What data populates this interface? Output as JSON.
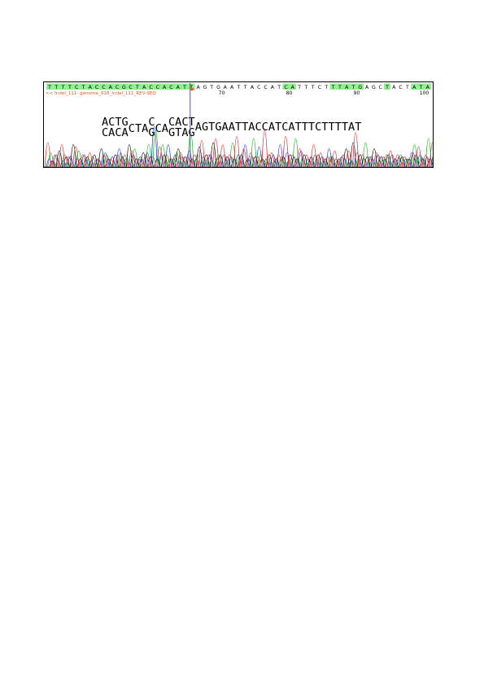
{
  "chart_data": {
    "type": "line",
    "sequence_track": "TTTTCTACCACGCTACCACATTAGTGAATTACCATCATTTCTTTATGAGCTACTATA",
    "highlight_pattern": "GGGGGGGGGGGGGGGGGGGGGGWWWWWWWWWWWWWGGWWWWWGGGGGWWWGWWWGGGGGG",
    "read_label": "<< Indel_111- genome_918_Indel_111_REV-SEQ",
    "position_ticks": [
      {
        "label": "70",
        "index": 25
      },
      {
        "label": "80",
        "index": 35
      },
      {
        "label": "90",
        "index": 45
      },
      {
        "label": "100",
        "index": 55
      }
    ],
    "call_prefix_upper": [
      "ACTG",
      "C",
      "CACT"
    ],
    "call_prefix_lower": [
      "CACA",
      "G",
      "GTAG"
    ],
    "call_prefix_middle": [
      "CTA",
      "CA"
    ],
    "call_suffix": "AGTGAATTACCATCATTTCTTTTAT",
    "cursor_index": 21,
    "colors": {
      "highlight": "#8ef08e",
      "label": "#e05a20",
      "cursor": "#3a3ae0",
      "A": "#22bb22",
      "C": "#2244dd",
      "G": "#111111",
      "T": "#e03030"
    },
    "traces": {
      "A": [
        0.35,
        0.15,
        0.3,
        0.1,
        0.4,
        0.2,
        0.25,
        0.15,
        0.3,
        0.1,
        0.35,
        0.2,
        0.45,
        0.2,
        0.55,
        0.9,
        0.55,
        0.2,
        0.35,
        0.15,
        0.85,
        0.3,
        0.2,
        0.15,
        0.3,
        0.2,
        0.6,
        0.25,
        0.15,
        0.7,
        0.3,
        0.2,
        0.15,
        0.25,
        0.15,
        0.7,
        0.2,
        0.15,
        0.2,
        0.15,
        0.25,
        0.15,
        0.2,
        0.15,
        0.2,
        0.6,
        0.2,
        0.15,
        0.3,
        0.15,
        0.3,
        0.2,
        0.55,
        0.25,
        0.7,
        0.3
      ],
      "C": [
        0.2,
        0.3,
        0.15,
        0.25,
        0.2,
        0.3,
        0.15,
        0.2,
        0.35,
        0.25,
        0.45,
        0.2,
        0.3,
        0.25,
        0.35,
        1.0,
        0.3,
        0.55,
        0.3,
        0.25,
        0.4,
        0.2,
        0.25,
        0.3,
        0.2,
        0.3,
        0.25,
        0.3,
        0.55,
        0.25,
        0.5,
        0.2,
        0.3,
        0.55,
        0.35,
        0.25,
        0.4,
        0.2,
        0.3,
        0.25,
        0.45,
        0.2,
        0.3,
        0.2,
        0.35,
        0.2,
        0.25,
        0.3,
        0.2,
        0.3,
        0.25,
        0.2,
        0.35,
        0.3,
        0.25,
        0.3
      ],
      "G": [
        0.15,
        0.4,
        0.25,
        0.55,
        0.2,
        0.25,
        0.3,
        0.45,
        0.2,
        0.3,
        0.25,
        0.55,
        0.2,
        0.35,
        0.25,
        0.2,
        0.3,
        0.2,
        0.45,
        0.25,
        0.2,
        0.5,
        0.3,
        0.6,
        0.3,
        0.25,
        0.2,
        0.3,
        0.2,
        0.25,
        0.2,
        0.3,
        0.2,
        0.25,
        0.3,
        0.2,
        0.3,
        0.25,
        0.3,
        0.2,
        0.25,
        0.2,
        0.45,
        0.6,
        0.3,
        0.25,
        0.45,
        0.25,
        0.3,
        0.2,
        0.25,
        0.2,
        0.3,
        0.2,
        0.2,
        0.15
      ],
      "T": [
        0.6,
        0.3,
        0.55,
        0.25,
        0.5,
        0.3,
        0.35,
        0.2,
        0.3,
        0.2,
        0.3,
        0.3,
        0.4,
        0.2,
        0.3,
        0.25,
        0.5,
        0.3,
        0.2,
        0.35,
        0.25,
        0.3,
        0.65,
        0.3,
        0.7,
        0.55,
        0.3,
        0.75,
        0.45,
        0.35,
        0.25,
        0.9,
        0.35,
        0.3,
        0.75,
        0.3,
        0.45,
        0.3,
        0.55,
        0.35,
        0.25,
        0.4,
        0.25,
        0.4,
        0.85,
        0.3,
        0.25,
        0.35,
        0.25,
        0.4,
        0.3,
        0.25,
        0.35,
        0.5,
        0.3,
        0.6
      ]
    }
  }
}
